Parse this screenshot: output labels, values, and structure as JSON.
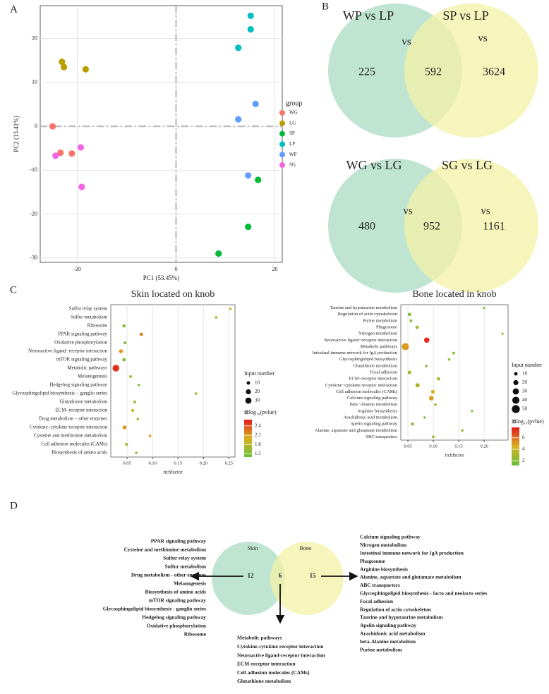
{
  "panel_labels": [
    "A",
    "B",
    "C",
    "D"
  ],
  "chart_data": [
    {
      "type": "scatter",
      "xlabel": "PC1 (53.45%)",
      "ylabel": "PC2 (13.41%)",
      "legend_title": "group",
      "xlim": [
        -27.5,
        21.5
      ],
      "ylim": [
        -31,
        27.5
      ],
      "xticks": [
        -20,
        0,
        20
      ],
      "yticks": [
        -30,
        -20,
        -10,
        0,
        10,
        20
      ],
      "grid": true,
      "zero_lines": true,
      "series": [
        {
          "name": "WG",
          "color": "#f8766d",
          "x": [
            -25,
            -23.4,
            -21.1
          ],
          "y": [
            0,
            -6.0,
            -6.2
          ]
        },
        {
          "name": "LG",
          "color": "#b79f00",
          "x": [
            -23.1,
            -22.7,
            -18.3
          ],
          "y": [
            14.7,
            13.5,
            13.0
          ]
        },
        {
          "name": "SP",
          "color": "#00ba38",
          "x": [
            8.6,
            14.6,
            16.6
          ],
          "y": [
            -29.0,
            -22.9,
            -12.2
          ]
        },
        {
          "name": "LP",
          "color": "#00bfc4",
          "x": [
            15.1,
            15.1,
            12.6
          ],
          "y": [
            25.2,
            22.1,
            17.9
          ]
        },
        {
          "name": "WP",
          "color": "#619cff",
          "x": [
            16.1,
            12.6,
            14.6
          ],
          "y": [
            5.1,
            1.6,
            -11.2
          ]
        },
        {
          "name": "SG",
          "color": "#f564e3",
          "x": [
            -24.4,
            -19.3,
            -19.1
          ],
          "y": [
            -6.7,
            -4.8,
            -13.8
          ]
        }
      ]
    },
    {
      "type": "venn",
      "sets": [
        {
          "name": "WP vs LP",
          "color": "#a9dcc3"
        },
        {
          "name": "SP vs LP",
          "color": "#f3f2a6"
        }
      ],
      "values": [
        225,
        592,
        3624
      ],
      "annotations": [
        "vs",
        "vs"
      ]
    },
    {
      "type": "venn",
      "sets": [
        {
          "name": "WG vs LG",
          "color": "#a9dcc3"
        },
        {
          "name": "SG vs LG",
          "color": "#f3f2a6"
        }
      ],
      "values": [
        480,
        952,
        1161
      ],
      "annotations": [
        "vs",
        "vs"
      ]
    },
    {
      "type": "dotplot",
      "title": "Skin located on knob",
      "xlabel": "richfactor",
      "categories": [
        "Sulfur relay system",
        "Sulfur metabolism",
        "Ribosome",
        "PPAR signaling pathway",
        "Oxidative phosphorylation",
        "Neuroactive ligand−receptor interaction",
        "mTOR signaling pathway",
        "Metabolic pathways",
        "Melanogenesis",
        "Hedgehog signaling pathway",
        "Glycosphingolipid biosynthesis − ganglio series",
        "Glutathione metabolism",
        "ECM−receptor interaction",
        "Drug metabolism − other enzymes",
        "Cytokine−cytokine receptor interaction",
        "Cysteine and methionine metabolism",
        "Cell adhesion molecules (CAMs)",
        "Biosynthesis of amino acids"
      ],
      "values": [
        0.253,
        0.225,
        0.044,
        0.078,
        0.046,
        0.038,
        0.044,
        0.028,
        0.057,
        0.073,
        0.185,
        0.065,
        0.061,
        0.071,
        0.045,
        0.095,
        0.049,
        0.068
      ],
      "sizes": [
        5,
        5,
        8,
        9,
        7,
        12,
        9,
        35,
        6,
        5,
        5,
        6,
        7,
        5,
        12,
        5,
        7,
        5
      ],
      "color_values": [
        2.0,
        1.6,
        1.5,
        2.2,
        1.5,
        2.1,
        1.5,
        2.5,
        1.7,
        1.5,
        1.6,
        1.6,
        1.9,
        1.7,
        2.1,
        2.1,
        1.7,
        1.6
      ],
      "xlim": [
        0.018,
        0.262
      ],
      "xticks": [
        0.05,
        {
          "value": 0.1,
          "label": "0.10"
        },
        0.15,
        {
          "value": 0.2,
          "label": "0.20"
        },
        0.25
      ],
      "size_legend": {
        "title": "Input number",
        "values": [
          10,
          20,
          30
        ]
      },
      "color_legend": {
        "title": "⊠log₁₀(pvlue)",
        "ticks": [
          1.5,
          1.8,
          2.1,
          2.4
        ],
        "lim": [
          1.4,
          2.6
        ],
        "colors": [
          "#6abf3c",
          "#d9b21f",
          "#e41a1c"
        ]
      }
    },
    {
      "type": "dotplot",
      "title": "Bone located in knob",
      "xlabel": "richfactor",
      "categories": [
        "Taurine and hypotaurine metabolism",
        "Regulation of actin cytoskeleton",
        "Purine metabolism",
        "Phagosome",
        "Nitrogen metabolism",
        "Neuroactive ligand−receptor interaction",
        "Metabolic pathways",
        "Intestinal immune network for IgA production",
        "Glycosphingolipid biosynthesis",
        "Glutathione metabolism",
        "Focal adhesion",
        "ECM−receptor interaction",
        "Cytokine−cytokine receptor interaction",
        "Cell adhesion molecules (CAMs)",
        "Calcium signaling pathway",
        "beta−Alanine metabolism",
        "Arginine biosynthesis",
        "Arachidonic acid metabolism",
        "Apelin signaling pathway",
        "Alanine, aspartate and glutamate metabolism",
        "ABC transporters"
      ],
      "values": [
        0.2,
        0.053,
        0.056,
        0.068,
        0.236,
        0.087,
        0.045,
        0.14,
        0.131,
        0.086,
        0.053,
        0.11,
        0.069,
        0.099,
        0.096,
        0.104,
        0.176,
        0.083,
        0.059,
        0.157,
        0.1
      ],
      "sizes": [
        4,
        9,
        6,
        9,
        4,
        22,
        40,
        6,
        5,
        5,
        10,
        9,
        14,
        12,
        16,
        5,
        4,
        5,
        8,
        5,
        6
      ],
      "color_values": [
        2,
        2,
        2,
        2.5,
        2.3,
        7.5,
        5,
        2.5,
        2,
        2,
        2.5,
        3,
        3,
        4.5,
        5,
        2.5,
        2,
        2,
        2.5,
        2.5,
        2.5
      ],
      "xlim": [
        0.036,
        0.247
      ],
      "xticks": [
        0.05,
        {
          "value": 0.1,
          "label": "0.10"
        },
        0.15,
        {
          "value": 0.2,
          "label": "0.20"
        }
      ],
      "size_legend": {
        "title": "Input number",
        "values": [
          10,
          20,
          30,
          40,
          50
        ]
      },
      "color_legend": {
        "title": "⊠log₁₀(pvlue)",
        "ticks": [
          2,
          4,
          6
        ],
        "lim": [
          1.2,
          7.8
        ],
        "colors": [
          "#6abf3c",
          "#d9b21f",
          "#e41a1c"
        ]
      }
    },
    {
      "type": "venn",
      "sets": [
        {
          "name": "Skin",
          "color": "#a9dcc3"
        },
        {
          "name": "Bone",
          "color": "#f3f2a6"
        }
      ],
      "values": [
        12,
        6,
        15
      ],
      "lists": [
        [
          "PPAR signaling pathway",
          "Cysteine and methionine metabolism",
          "Sulfur relay system",
          "Sulfur metabolism",
          "Drug metabolism - other enzymes",
          "Melanogenesis",
          "Biosynthesis of amino acids",
          "mTOR signaling pathway",
          "Glycosphingolipid biosynthesis - ganglio series",
          "Hedgehog signaling pathway",
          "Oxidative phosphorylation",
          "Ribosome"
        ],
        [
          "Metabolic pathways",
          "Cytokine-cytokine receptor interaction",
          "Neuroactive ligand-receptor interaction",
          "ECM-receptor interaction",
          "Cell adhesion molecules (CAMs)",
          "Glutathione metabolism"
        ],
        [
          "Calcium signaling pathway",
          "Nitrogen metabolism",
          "Intestinal immune network for IgA production",
          "Phagosome",
          "Arginine biosynthesis",
          "Alanine, aspartate and glutamate metabolism",
          "ABC transporters",
          "Glycosphingolipid biosynthesis - lacto and neolacto series",
          "Focal adhesion",
          "Regulation of actin cytoskeleton",
          "Taurine and hypotaurine metabolism",
          "Apelin signaling pathway",
          "Arachidonic acid metabolism",
          "beta-Alanine metabolism",
          "Purine metabolism"
        ]
      ]
    }
  ]
}
